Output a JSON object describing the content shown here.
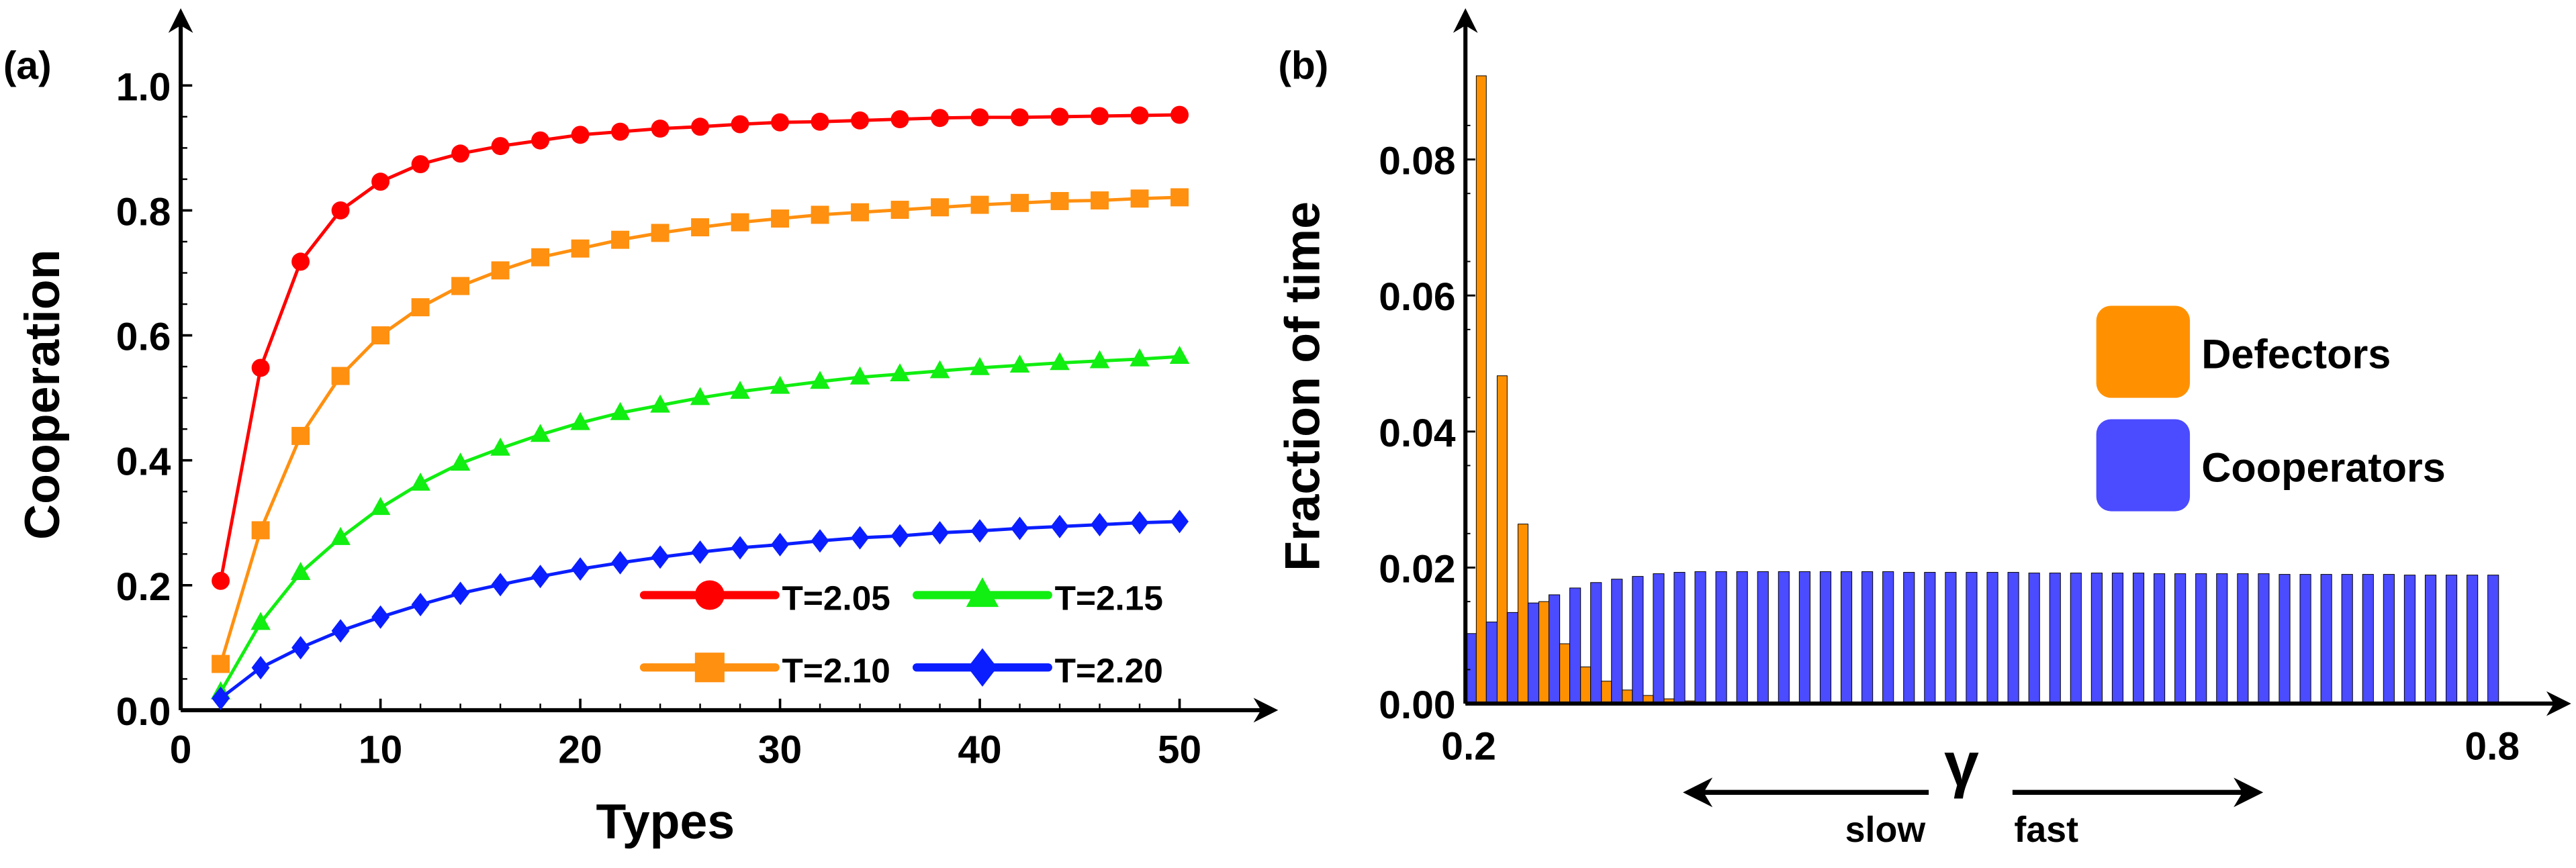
{
  "chart_data": [
    {
      "type": "line",
      "panel_label": "(a)",
      "xlabel": "Types",
      "ylabel": "Cooperation",
      "xlim": [
        0,
        50
      ],
      "ylim": [
        0,
        1.0
      ],
      "xticks": [
        "0",
        "10",
        "20",
        "30",
        "40",
        "50"
      ],
      "yticks": [
        "0.0",
        "0.2",
        "0.4",
        "0.6",
        "0.8",
        "1.0"
      ],
      "legend_placement": "bottom-right",
      "x": [
        2,
        4,
        6,
        8,
        10,
        12,
        14,
        16,
        18,
        20,
        22,
        24,
        26,
        28,
        30,
        32,
        34,
        36,
        38,
        40,
        42,
        44,
        46,
        48,
        50
      ],
      "series": [
        {
          "name": "T=2.05",
          "color": "#ff0000",
          "marker": "circle",
          "values": [
            0.207,
            0.548,
            0.718,
            0.8,
            0.846,
            0.874,
            0.891,
            0.903,
            0.912,
            0.921,
            0.926,
            0.931,
            0.934,
            0.938,
            0.941,
            0.942,
            0.944,
            0.946,
            0.948,
            0.949,
            0.949,
            0.95,
            0.951,
            0.952,
            0.953
          ]
        },
        {
          "name": "T=2.10",
          "color": "#ff9010",
          "marker": "square",
          "values": [
            0.074,
            0.288,
            0.439,
            0.535,
            0.6,
            0.645,
            0.679,
            0.704,
            0.725,
            0.739,
            0.753,
            0.764,
            0.773,
            0.781,
            0.787,
            0.793,
            0.797,
            0.801,
            0.805,
            0.809,
            0.812,
            0.815,
            0.816,
            0.819,
            0.821
          ]
        },
        {
          "name": "T=2.15",
          "color": "#11ee11",
          "marker": "triangle",
          "values": [
            0.029,
            0.14,
            0.22,
            0.276,
            0.324,
            0.363,
            0.395,
            0.419,
            0.441,
            0.46,
            0.476,
            0.488,
            0.5,
            0.51,
            0.518,
            0.526,
            0.533,
            0.538,
            0.543,
            0.548,
            0.552,
            0.556,
            0.559,
            0.562,
            0.566
          ]
        },
        {
          "name": "T=2.20",
          "color": "#0a1eff",
          "marker": "diamond",
          "values": [
            0.019,
            0.068,
            0.1,
            0.127,
            0.149,
            0.169,
            0.187,
            0.201,
            0.214,
            0.226,
            0.236,
            0.245,
            0.253,
            0.26,
            0.265,
            0.271,
            0.276,
            0.279,
            0.284,
            0.287,
            0.291,
            0.294,
            0.297,
            0.3,
            0.302
          ]
        }
      ]
    },
    {
      "type": "bar",
      "panel_label": "(b)",
      "xlabel": "γ",
      "ylabel": "Fraction of time",
      "xlim": [
        0.2,
        0.8
      ],
      "ylim": [
        0,
        0.092
      ],
      "xticks": [
        "0.2",
        "0.8"
      ],
      "yticks": [
        "0.00",
        "0.02",
        "0.04",
        "0.06",
        "0.08"
      ],
      "annotations": {
        "slow": "slow",
        "fast": "fast"
      },
      "legend_placement": "right",
      "bins": 50,
      "series": [
        {
          "name": "Defectors",
          "color": "#ff9100",
          "values": [
            0.0923,
            0.0482,
            0.0264,
            0.015,
            0.0088,
            0.0054,
            0.0033,
            0.002,
            0.0012,
            0.0007,
            0.0004,
            0.0002,
            0,
            0,
            0,
            0,
            0,
            0,
            0,
            0,
            0,
            0,
            0,
            0,
            0,
            0,
            0,
            0,
            0,
            0,
            0,
            0,
            0,
            0,
            0,
            0,
            0,
            0,
            0,
            0,
            0,
            0,
            0,
            0,
            0,
            0,
            0,
            0,
            0,
            0
          ]
        },
        {
          "name": "Cooperators",
          "color": "#4b4bff",
          "values": [
            0.0103,
            0.012,
            0.0134,
            0.0148,
            0.016,
            0.017,
            0.0178,
            0.0183,
            0.0187,
            0.0191,
            0.0193,
            0.0194,
            0.0194,
            0.0194,
            0.0194,
            0.0194,
            0.0194,
            0.0194,
            0.0194,
            0.0194,
            0.0194,
            0.0193,
            0.0193,
            0.0193,
            0.0193,
            0.0193,
            0.0193,
            0.0192,
            0.0192,
            0.0192,
            0.0192,
            0.0192,
            0.0192,
            0.0191,
            0.0191,
            0.0191,
            0.0191,
            0.0191,
            0.0191,
            0.019,
            0.019,
            0.019,
            0.019,
            0.019,
            0.019,
            0.0189,
            0.0189,
            0.0189,
            0.0189,
            0.0189
          ]
        }
      ]
    }
  ]
}
